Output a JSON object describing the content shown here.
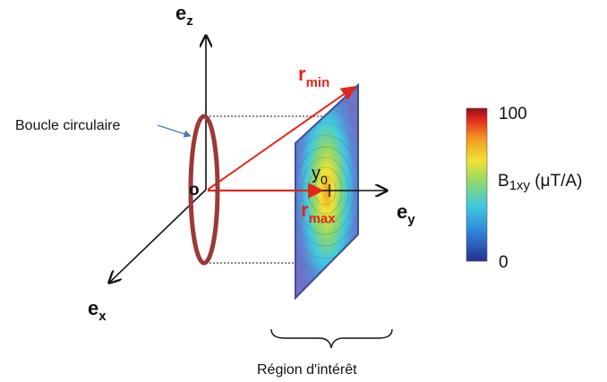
{
  "axes": {
    "ez": {
      "main": "e",
      "sub": "z"
    },
    "ey": {
      "main": "e",
      "sub": "y"
    },
    "ex": {
      "main": "e",
      "sub": "x"
    },
    "origin": "o"
  },
  "loop_label": "Boucle circulaire",
  "region_label": "Région d'intérêt",
  "r_min": {
    "main": "r",
    "sub": "min"
  },
  "r_max": {
    "main": "r",
    "sub": "max"
  },
  "y0": {
    "main": "y",
    "sub": "0"
  },
  "colorbar": {
    "max_label": "100",
    "min_label": "0",
    "quantity_main": "B",
    "quantity_sub": "1xy",
    "quantity_unit": " (μT/A)",
    "colors": [
      "#2a2f8f",
      "#2f7fd6",
      "#3fc9e0",
      "#8fd86a",
      "#f2e233",
      "#f39a22",
      "#e2261c",
      "#8b1414"
    ]
  },
  "colors": {
    "loop": "#9b3a38",
    "vectors": "#e2261c",
    "plane_border": "#3c4e95",
    "axes": "#111111"
  }
}
